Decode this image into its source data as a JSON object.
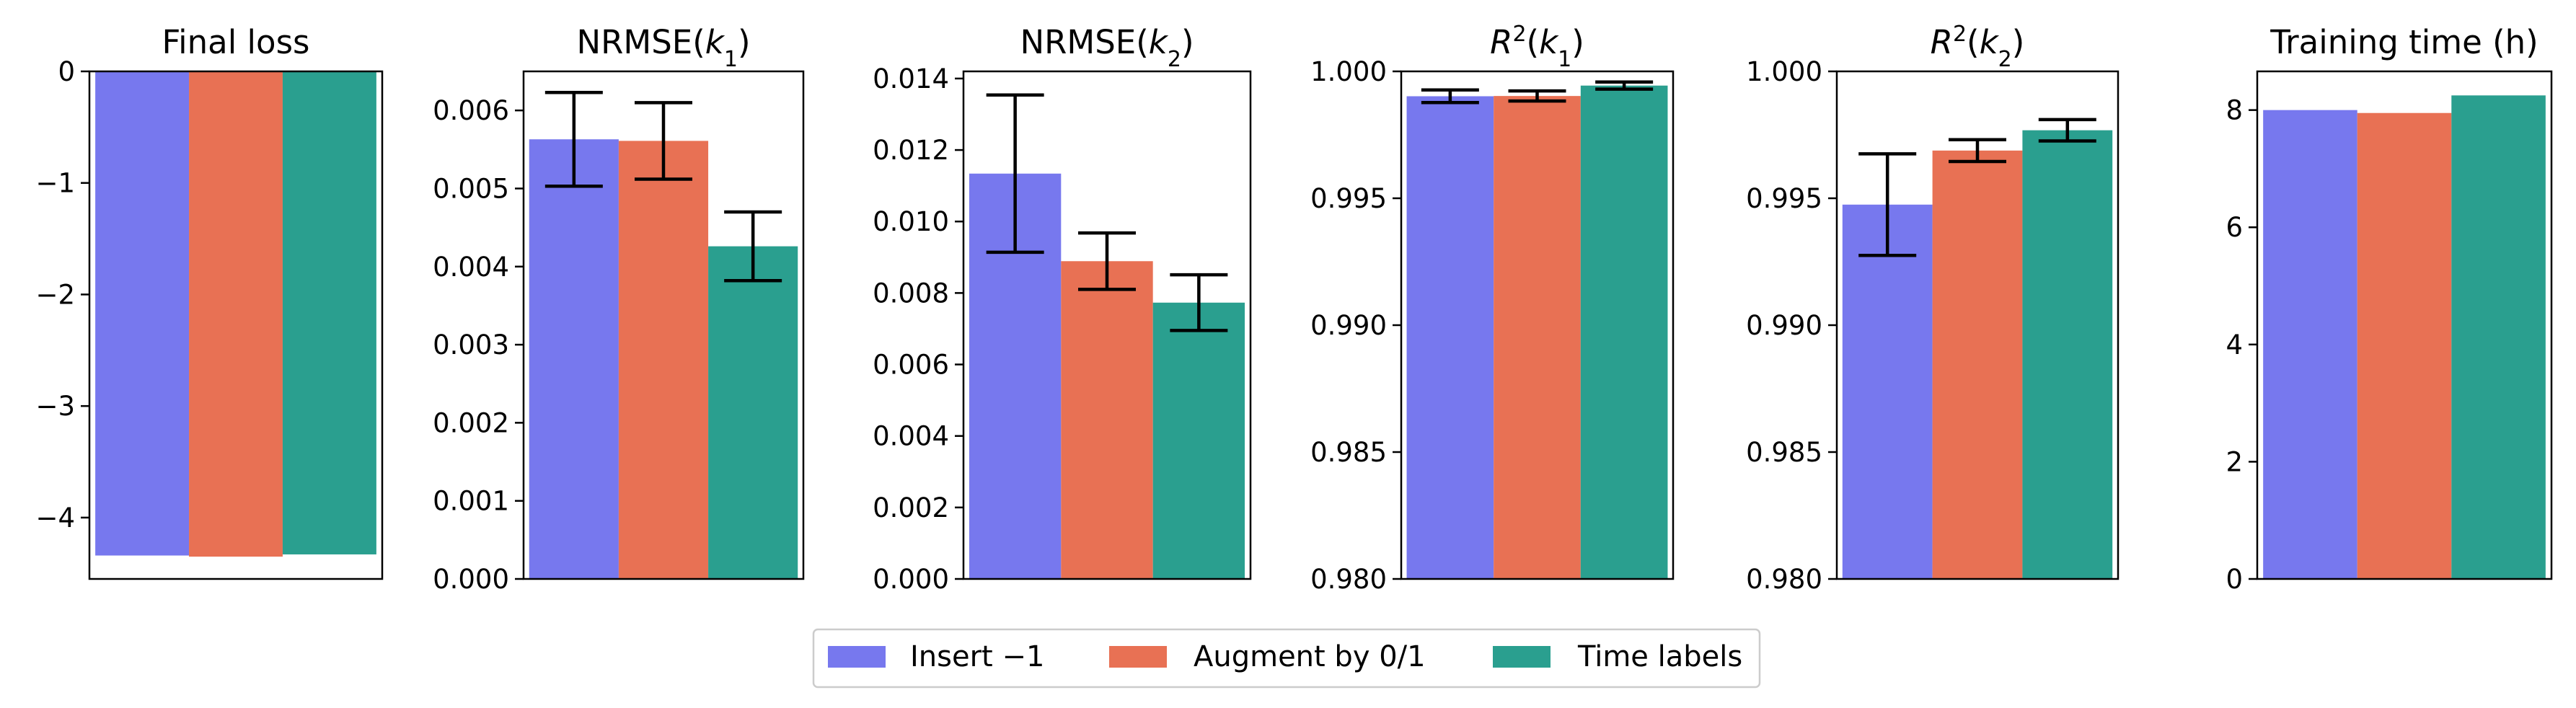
{
  "legend": {
    "items": [
      {
        "label": "Insert −1",
        "color": "#7778ee"
      },
      {
        "label": "Augment by 0/1",
        "color": "#e87154"
      },
      {
        "label": "Time labels",
        "color": "#2a9f8f"
      }
    ]
  },
  "chart_data": [
    {
      "type": "bar",
      "title": "Final loss",
      "categories": [
        "Insert −1",
        "Augment by 0/1",
        "Time labels"
      ],
      "values": [
        -4.34,
        -4.35,
        -4.33
      ],
      "errors": null,
      "ylim": [
        -4.55,
        0
      ],
      "yticks": [
        0,
        -1,
        -2,
        -3,
        -4
      ],
      "yticklabels": [
        "0",
        "−1",
        "−2",
        "−3",
        "−4"
      ],
      "grid": false
    },
    {
      "type": "bar",
      "title": "NRMSE(k1)",
      "title_parts": {
        "pre": "NRMSE(",
        "var": "k",
        "sub": "1",
        "post": ")"
      },
      "categories": [
        "Insert −1",
        "Augment by 0/1",
        "Time labels"
      ],
      "values": [
        0.00563,
        0.00561,
        0.00426
      ],
      "errors": [
        0.0006,
        0.00049,
        0.00044
      ],
      "ylim": [
        0,
        0.0065
      ],
      "yticks": [
        0,
        0.001,
        0.002,
        0.003,
        0.004,
        0.005,
        0.006
      ],
      "yticklabels": [
        "0.000",
        "0.001",
        "0.002",
        "0.003",
        "0.004",
        "0.005",
        "0.006"
      ],
      "grid": false
    },
    {
      "type": "bar",
      "title": "NRMSE(k2)",
      "title_parts": {
        "pre": "NRMSE(",
        "var": "k",
        "sub": "2",
        "post": ")"
      },
      "categories": [
        "Insert −1",
        "Augment by 0/1",
        "Time labels"
      ],
      "values": [
        0.01134,
        0.00889,
        0.00773
      ],
      "errors": [
        0.0022,
        0.00079,
        0.00078
      ],
      "ylim": [
        0,
        0.0142
      ],
      "yticks": [
        0,
        0.002,
        0.004,
        0.006,
        0.008,
        0.01,
        0.012,
        0.014
      ],
      "yticklabels": [
        "0.000",
        "0.002",
        "0.004",
        "0.006",
        "0.008",
        "0.010",
        "0.012",
        "0.014"
      ],
      "grid": false
    },
    {
      "type": "bar",
      "title": "R2(k1)",
      "title_parts": {
        "pre": "",
        "var": "R",
        "sup": "2",
        "post": "(",
        "var2": "k",
        "sub": "1",
        "end": ")"
      },
      "categories": [
        "Insert −1",
        "Augment by 0/1",
        "Time labels"
      ],
      "values": [
        0.99902,
        0.99903,
        0.99944
      ],
      "errors": [
        0.00025,
        0.0002,
        0.00014
      ],
      "ylim": [
        0.98,
        1.0
      ],
      "yticks": [
        0.98,
        0.985,
        0.99,
        0.995,
        1.0
      ],
      "yticklabels": [
        "0.980",
        "0.985",
        "0.990",
        "0.995",
        "1.000"
      ],
      "grid": false
    },
    {
      "type": "bar",
      "title": "R2(k2)",
      "title_parts": {
        "pre": "",
        "var": "R",
        "sup": "2",
        "post": "(",
        "var2": "k",
        "sub": "2",
        "end": ")"
      },
      "categories": [
        "Insert −1",
        "Augment by 0/1",
        "Time labels"
      ],
      "values": [
        0.99475,
        0.99688,
        0.99768
      ],
      "errors": [
        0.002,
        0.00043,
        0.00042
      ],
      "ylim": [
        0.98,
        1.0
      ],
      "yticks": [
        0.98,
        0.985,
        0.99,
        0.995,
        1.0
      ],
      "yticklabels": [
        "0.980",
        "0.985",
        "0.990",
        "0.995",
        "1.000"
      ],
      "grid": false
    },
    {
      "type": "bar",
      "title": "Training time (h)",
      "categories": [
        "Insert −1",
        "Augment by 0/1",
        "Time labels"
      ],
      "values": [
        8.0,
        7.95,
        8.25
      ],
      "errors": null,
      "ylim": [
        0,
        8.66
      ],
      "yticks": [
        0,
        2,
        4,
        6,
        8
      ],
      "yticklabels": [
        "0",
        "2",
        "4",
        "6",
        "8"
      ],
      "grid": false
    }
  ]
}
